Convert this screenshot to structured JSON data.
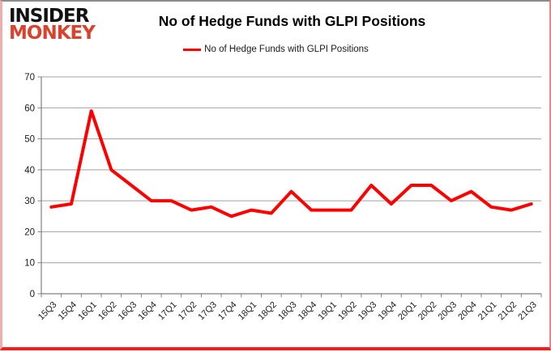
{
  "brand": {
    "line1": "INSIDER",
    "line2": "MONKEY"
  },
  "header": {
    "title": "No of Hedge Funds with GLPI Positions"
  },
  "legend": {
    "label": "No of Hedge Funds with GLPI Positions"
  },
  "colors": {
    "line": "#ff0000",
    "grid": "#a0a0a0",
    "axis": "#808080",
    "tick_text": "#1a1a1a",
    "brand_black": "#111111",
    "brand_red": "#d9432e"
  },
  "chart_data": {
    "type": "line",
    "title": "No of Hedge Funds with GLPI Positions",
    "xlabel": "",
    "ylabel": "",
    "ylim": [
      0,
      70
    ],
    "ytick_step": 10,
    "grid": true,
    "legend_position": "top",
    "categories": [
      "15Q3",
      "15Q4",
      "16Q1",
      "16Q2",
      "16Q3",
      "16Q4",
      "17Q1",
      "17Q2",
      "17Q3",
      "17Q4",
      "18Q1",
      "18Q2",
      "18Q3",
      "18Q4",
      "19Q1",
      "19Q2",
      "19Q3",
      "19Q4",
      "20Q1",
      "20Q2",
      "20Q3",
      "20Q4",
      "21Q1",
      "21Q2",
      "21Q3"
    ],
    "series": [
      {
        "name": "No of Hedge Funds with GLPI Positions",
        "values": [
          28,
          29,
          59,
          40,
          35,
          30,
          30,
          27,
          28,
          25,
          27,
          26,
          33,
          27,
          27,
          27,
          35,
          29,
          35,
          35,
          30,
          33,
          28,
          27,
          29
        ]
      }
    ]
  }
}
